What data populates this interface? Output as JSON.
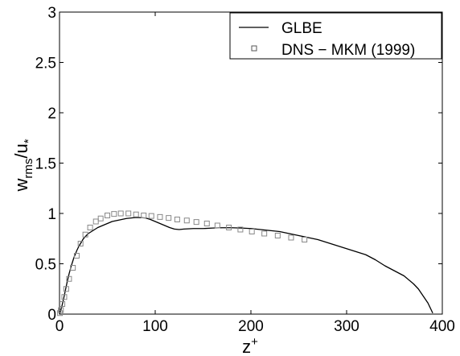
{
  "chart_data": {
    "type": "line",
    "title": "",
    "xlabel": {
      "base": "z",
      "sup": "+"
    },
    "ylabel": {
      "base": "w",
      "base_sub": "rms",
      "mid": "/u",
      "mid_sub": "*"
    },
    "xlim": [
      0,
      400
    ],
    "ylim": [
      0,
      3
    ],
    "xticks": [
      "0",
      "100",
      "200",
      "300",
      "400"
    ],
    "yticks": [
      "0",
      "0.5",
      "1",
      "1.5",
      "2",
      "2.5",
      "3"
    ],
    "grid": false,
    "legend_position": "top-right",
    "series": [
      {
        "name": "GLBE",
        "style": "solid-line",
        "color": "#000000",
        "x": [
          0,
          2,
          4,
          6,
          8,
          10,
          12,
          15,
          18,
          20,
          25,
          30,
          35,
          40,
          45,
          50,
          55,
          60,
          65,
          70,
          75,
          80,
          85,
          90,
          95,
          100,
          105,
          110,
          115,
          120,
          125,
          130,
          140,
          150,
          160,
          170,
          180,
          190,
          200,
          210,
          220,
          230,
          240,
          250,
          260,
          270,
          280,
          290,
          300,
          310,
          320,
          330,
          340,
          350,
          360,
          370,
          375,
          380,
          385,
          388,
          390
        ],
        "y": [
          0,
          0.06,
          0.14,
          0.23,
          0.32,
          0.4,
          0.47,
          0.56,
          0.63,
          0.67,
          0.75,
          0.8,
          0.83,
          0.86,
          0.88,
          0.9,
          0.92,
          0.93,
          0.94,
          0.95,
          0.955,
          0.96,
          0.958,
          0.955,
          0.94,
          0.92,
          0.9,
          0.88,
          0.86,
          0.845,
          0.84,
          0.845,
          0.85,
          0.85,
          0.855,
          0.858,
          0.858,
          0.855,
          0.85,
          0.84,
          0.83,
          0.82,
          0.8,
          0.78,
          0.76,
          0.74,
          0.71,
          0.68,
          0.65,
          0.62,
          0.59,
          0.54,
          0.48,
          0.43,
          0.38,
          0.3,
          0.25,
          0.18,
          0.11,
          0.05,
          0.01
        ]
      },
      {
        "name": "DNS − MKM (1999)",
        "style": "square-markers",
        "color": "#888888",
        "x": [
          0.5,
          1.5,
          3,
          5,
          7,
          10,
          14,
          18,
          22,
          27,
          32,
          38,
          43,
          50,
          57,
          64,
          72,
          80,
          88,
          96,
          105,
          114,
          123,
          133,
          143,
          154,
          165,
          177,
          189,
          201,
          214,
          228,
          242,
          256
        ],
        "y": [
          0.01,
          0.04,
          0.1,
          0.17,
          0.25,
          0.35,
          0.46,
          0.58,
          0.7,
          0.79,
          0.86,
          0.92,
          0.95,
          0.98,
          0.995,
          1.0,
          1.0,
          0.99,
          0.98,
          0.975,
          0.965,
          0.955,
          0.94,
          0.93,
          0.915,
          0.9,
          0.88,
          0.86,
          0.84,
          0.82,
          0.8,
          0.78,
          0.76,
          0.74
        ]
      }
    ]
  }
}
